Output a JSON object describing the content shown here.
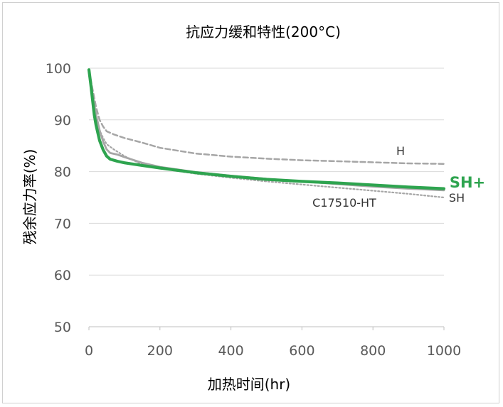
{
  "chart_data": {
    "type": "line",
    "title": "抗应力缓和特性(200°C)",
    "xlabel": "加热时间(hr)",
    "ylabel": "残余应力率(%)",
    "xlim": [
      0,
      1000
    ],
    "ylim": [
      50,
      100
    ],
    "x_ticks": [
      0,
      200,
      400,
      600,
      800,
      1000
    ],
    "y_ticks": [
      50,
      60,
      70,
      80,
      90,
      100
    ],
    "grid": "horizontal",
    "series": [
      {
        "name": "H",
        "style": "dashed",
        "color": "#a6a6a6",
        "x": [
          0,
          10,
          20,
          30,
          40,
          50,
          70,
          100,
          150,
          200,
          300,
          400,
          500,
          600,
          700,
          800,
          900,
          1000
        ],
        "y": [
          99.5,
          96,
          92.5,
          90,
          88.7,
          87.8,
          87.2,
          86.5,
          85.6,
          84.6,
          83.5,
          82.9,
          82.5,
          82.2,
          82.0,
          81.8,
          81.6,
          81.5
        ]
      },
      {
        "name": "C17510-HT",
        "style": "dotted",
        "color": "#a6a6a6",
        "x": [
          0,
          10,
          20,
          30,
          40,
          50,
          70,
          100,
          150,
          200,
          300,
          400,
          500,
          600,
          700,
          800,
          900,
          1000
        ],
        "y": [
          99,
          95,
          91,
          88,
          86.5,
          85.3,
          84.3,
          83.0,
          81.4,
          80.6,
          79.6,
          78.8,
          78.1,
          77.5,
          76.9,
          76.3,
          75.7,
          75.0
        ]
      },
      {
        "name": "SH",
        "style": "solid",
        "color": "#a6a6a6",
        "x": [
          0,
          10,
          20,
          30,
          40,
          50,
          60,
          80,
          100,
          150,
          200,
          300,
          400,
          500,
          600,
          700,
          800,
          900,
          1000
        ],
        "y": [
          99.5,
          95,
          91,
          88,
          85.8,
          84.3,
          83.6,
          83.3,
          82.8,
          81.7,
          80.9,
          79.9,
          79.2,
          78.6,
          78.1,
          77.6,
          77.1,
          76.7,
          76.4
        ]
      },
      {
        "name": "SH+",
        "style": "solid-thick",
        "color": "#2ea44f",
        "x": [
          0,
          5,
          10,
          15,
          20,
          25,
          30,
          40,
          50,
          60,
          80,
          100,
          150,
          200,
          300,
          400,
          500,
          600,
          700,
          800,
          900,
          1000
        ],
        "y": [
          99.7,
          97,
          94,
          91,
          89,
          87.5,
          86,
          84.2,
          83.0,
          82.4,
          82.0,
          81.7,
          81.2,
          80.7,
          79.8,
          79.1,
          78.5,
          78.1,
          77.8,
          77.4,
          77.0,
          76.7
        ]
      }
    ],
    "annotations": [
      {
        "text": "H",
        "series": "H"
      },
      {
        "text": "C17510-HT",
        "series": "C17510-HT"
      },
      {
        "text": "SH",
        "series": "SH"
      },
      {
        "text": "SH+",
        "series": "SH+"
      }
    ]
  }
}
